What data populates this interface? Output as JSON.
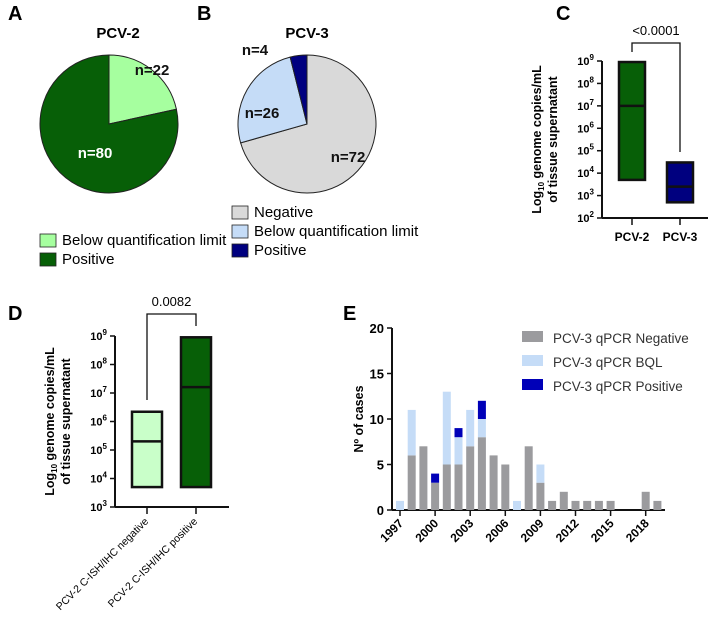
{
  "chart_data": [
    {
      "panel": "A",
      "type": "pie",
      "title": "PCV-2",
      "slices": [
        {
          "label": "Below quantification limit",
          "value": 22,
          "text": "n=22",
          "color": "#a6ff9f"
        },
        {
          "label": "Positive",
          "value": 80,
          "text": "n=80",
          "color": "#075f07"
        }
      ]
    },
    {
      "panel": "B",
      "type": "pie",
      "title": "PCV-3",
      "slices": [
        {
          "label": "Negative",
          "value": 72,
          "text": "n=72",
          "color": "#d9d9d9"
        },
        {
          "label": "Below quantification limit",
          "value": 26,
          "text": "n=26",
          "color": "#c5dcf7"
        },
        {
          "label": "Positive",
          "value": 4,
          "text": "n=4",
          "color": "#00007f"
        }
      ]
    },
    {
      "panel": "C",
      "type": "box",
      "ylabel_main": "Log",
      "ylabel_sub": "10",
      "ylabel_rest": " genome copies/mL",
      "ylabel2": "of tissue supernatant",
      "yscale": "log",
      "ylim_exp": [
        2,
        9
      ],
      "pvalue": "<0.0001",
      "groups": [
        {
          "name": "PCV-2",
          "min": 5000,
          "median": 10000000,
          "max": 900000000,
          "color": "#075f07"
        },
        {
          "name": "PCV-3",
          "min": 500,
          "median": 2500,
          "max": 30000,
          "color": "#00007f"
        }
      ]
    },
    {
      "panel": "D",
      "type": "box",
      "ylabel_main": "Log",
      "ylabel_sub": "10",
      "ylabel_rest": " genome copies/mL",
      "ylabel2": "of tissue supernatant",
      "yscale": "log",
      "ylim_exp": [
        3,
        9
      ],
      "pvalue": "0.0082",
      "groups": [
        {
          "name": "PCV-2 C-ISH/IHC negative",
          "min": 5000,
          "median": 200000,
          "max": 2200000,
          "color": "#c9ffc9"
        },
        {
          "name": "PCV-2 C-ISH/IHC positive",
          "min": 5000,
          "median": 16000000,
          "max": 900000000,
          "color": "#075f07"
        }
      ]
    },
    {
      "panel": "E",
      "type": "bar",
      "stacked": true,
      "ylabel": "Nº of cases",
      "ylim": [
        0,
        20
      ],
      "yticks": [
        0,
        5,
        10,
        15,
        20
      ],
      "xticks": [
        "1997",
        "2000",
        "2003",
        "2006",
        "2009",
        "2012",
        "2015",
        "2018"
      ],
      "legend_position": "top-right",
      "categories": [
        "1997",
        "1998",
        "1999",
        "2000",
        "2001",
        "2002",
        "2003",
        "2004",
        "2005",
        "2006",
        "2007",
        "2008",
        "2009",
        "2010",
        "2011",
        "2012",
        "2013",
        "2014",
        "2015",
        "2016",
        "2017",
        "2018",
        "2019"
      ],
      "series": [
        {
          "name": "PCV-3 qPCR Negative",
          "color": "#9b9b9e",
          "values": [
            0,
            6,
            7,
            3,
            5,
            5,
            7,
            8,
            6,
            5,
            0,
            7,
            3,
            1,
            2,
            1,
            1,
            1,
            1,
            0,
            0,
            2,
            1
          ]
        },
        {
          "name": "PCV-3 qPCR BQL",
          "color": "#c5dcf7",
          "values": [
            1,
            5,
            0,
            0,
            8,
            3,
            4,
            2,
            0,
            0,
            1,
            0,
            2,
            0,
            0,
            0,
            0,
            0,
            0,
            0,
            0,
            0,
            0
          ]
        },
        {
          "name": "PCV-3 qPCR Positive",
          "color": "#0000b8",
          "values": [
            0,
            0,
            0,
            1,
            0,
            1,
            0,
            2,
            0,
            0,
            0,
            0,
            0,
            0,
            0,
            0,
            0,
            0,
            0,
            0,
            0,
            0,
            0
          ]
        }
      ]
    }
  ],
  "panel_labels": [
    "A",
    "B",
    "C",
    "D",
    "E"
  ]
}
